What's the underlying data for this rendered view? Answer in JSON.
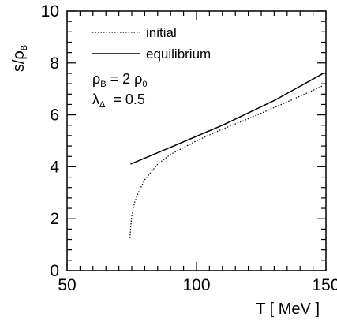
{
  "chart_data": {
    "type": "line",
    "xlabel": "T [ MeV ]",
    "ylabel": "s/ρ",
    "ylabel_sub": "B",
    "xlim": [
      50,
      150
    ],
    "ylim": [
      0,
      10
    ],
    "x_ticks": [
      50,
      100,
      150
    ],
    "y_ticks": [
      0,
      2,
      4,
      6,
      8,
      10
    ],
    "grid": false,
    "legend_position": "top-left",
    "series": [
      {
        "name": "initial",
        "style": "dotted",
        "color": "#000000",
        "points": [
          [
            74.3,
            1.25
          ],
          [
            74.6,
            1.7
          ],
          [
            75.0,
            2.1
          ],
          [
            76.0,
            2.6
          ],
          [
            77.5,
            3.0
          ],
          [
            80.0,
            3.5
          ],
          [
            85.0,
            4.1
          ],
          [
            90.0,
            4.48
          ],
          [
            100.0,
            5.0
          ],
          [
            110.0,
            5.45
          ],
          [
            120.0,
            5.85
          ],
          [
            130.0,
            6.28
          ],
          [
            140.0,
            6.72
          ],
          [
            149.0,
            7.13
          ]
        ]
      },
      {
        "name": "equilibrium",
        "style": "solid",
        "color": "#000000",
        "points": [
          [
            74.5,
            4.1
          ],
          [
            90.0,
            4.75
          ],
          [
            110.0,
            5.6
          ],
          [
            130.0,
            6.55
          ],
          [
            149.0,
            7.6
          ]
        ]
      }
    ],
    "annotations": [
      {
        "symbol": "ρ",
        "sub": "B",
        "text_after_sub": " = 2 ",
        "symbol2": "ρ",
        "sub2": "0"
      },
      {
        "symbol": "λ",
        "sub": "Δ",
        "text_after_sub": "  = 0.5"
      }
    ]
  }
}
